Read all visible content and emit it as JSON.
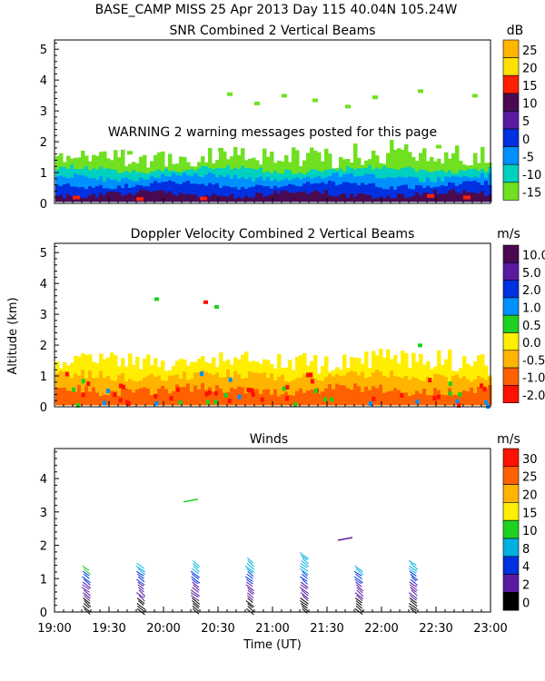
{
  "header": {
    "line1": "BASE_CAMP MISS  25 Apr 2013 Day 115 40.04N 105.24W"
  },
  "warning_text": "WARNING  2 warning messages posted for this page",
  "chart_data": [
    {
      "type": "heatmap",
      "id": "snr",
      "title": "SNR Combined 2 Vertical Beams",
      "units": "dB",
      "ylim": [
        0,
        5.3
      ],
      "yticks": [
        "0",
        "1",
        "2",
        "3",
        "4",
        "5"
      ],
      "xlim": [
        0,
        240
      ],
      "scale_labels": [
        "25",
        "20",
        "15",
        "10",
        "5",
        "0",
        "-5",
        "-10",
        "-15"
      ],
      "scale_colors": [
        "#ffb400",
        "#ffe000",
        "#ff2000",
        "#4a0a50",
        "#5a1aa0",
        "#0030e0",
        "#0090ff",
        "#00d0c0",
        "#70e020"
      ],
      "layers": [
        {
          "label": "-15",
          "color": "#70e020",
          "top_km": 1.4
        },
        {
          "label": "-10",
          "color": "#00d0c0",
          "top_km": 1.1
        },
        {
          "label": "-5",
          "color": "#0090ff",
          "top_km": 0.85
        },
        {
          "label": "0",
          "color": "#0030e0",
          "top_km": 0.6
        },
        {
          "label": "10",
          "color": "#4a0a50",
          "top_km": 0.3
        }
      ]
    },
    {
      "type": "heatmap",
      "id": "doppler",
      "title": "Doppler Velocity Combined 2 Vertical Beams",
      "units": "m/s",
      "ylabel": "Altitude (km)",
      "ylim": [
        0,
        5.3
      ],
      "yticks": [
        "0",
        "1",
        "2",
        "3",
        "4",
        "5"
      ],
      "xlim": [
        0,
        240
      ],
      "scale_labels": [
        "10.0",
        "5.0",
        "2.0",
        "1.0",
        "0.5",
        "0.0",
        "-0.5",
        "-1.0",
        "-2.0"
      ],
      "scale_colors": [
        "#4a0a50",
        "#5a1aa0",
        "#0030e0",
        "#0090ff",
        "#20d020",
        "#ffee00",
        "#ffb400",
        "#ff6000",
        "#ff1000"
      ],
      "layers": [
        {
          "label": "0.0",
          "color": "#ffee00",
          "top_km": 1.4
        },
        {
          "label": "-0.5",
          "color": "#ffb400",
          "top_km": 1.0
        },
        {
          "label": "-1.0",
          "color": "#ff6000",
          "top_km": 0.55
        }
      ]
    },
    {
      "type": "scatter",
      "id": "winds",
      "title": "Winds",
      "units": "m/s",
      "ylim": [
        0,
        4.9
      ],
      "yticks": [
        "0",
        "1",
        "2",
        "3",
        "4"
      ],
      "xlabel": "Time (UT)",
      "xlim": [
        0,
        240
      ],
      "xtick_values": [
        0,
        30,
        60,
        90,
        120,
        150,
        180,
        210,
        240
      ],
      "xtick_labels": [
        "19:00",
        "19:30",
        "20:00",
        "20:30",
        "21:00",
        "21:30",
        "22:00",
        "22:30",
        "23:00"
      ],
      "scale_labels": [
        "30",
        "25",
        "20",
        "15",
        "10",
        "8",
        "4",
        "2",
        "0"
      ],
      "scale_colors": [
        "#ff1000",
        "#ff6000",
        "#ffb400",
        "#ffee00",
        "#20d020",
        "#00b0e0",
        "#0030e0",
        "#5a1aa0",
        "#000000"
      ],
      "profiles": [
        {
          "time_min": 17,
          "max_km": 1.4
        },
        {
          "time_min": 47,
          "max_km": 1.5
        },
        {
          "time_min": 77,
          "max_km": 1.6
        },
        {
          "time_min": 107,
          "max_km": 1.7
        },
        {
          "time_min": 137,
          "max_km": 1.8
        },
        {
          "time_min": 167,
          "max_km": 1.4
        },
        {
          "time_min": 197,
          "max_km": 1.6
        }
      ],
      "isolated": [
        {
          "time_min": 75,
          "alt_km": 3.3,
          "color": "#20d020"
        },
        {
          "time_min": 160,
          "alt_km": 2.15,
          "color": "#5a1aa0"
        }
      ]
    }
  ]
}
